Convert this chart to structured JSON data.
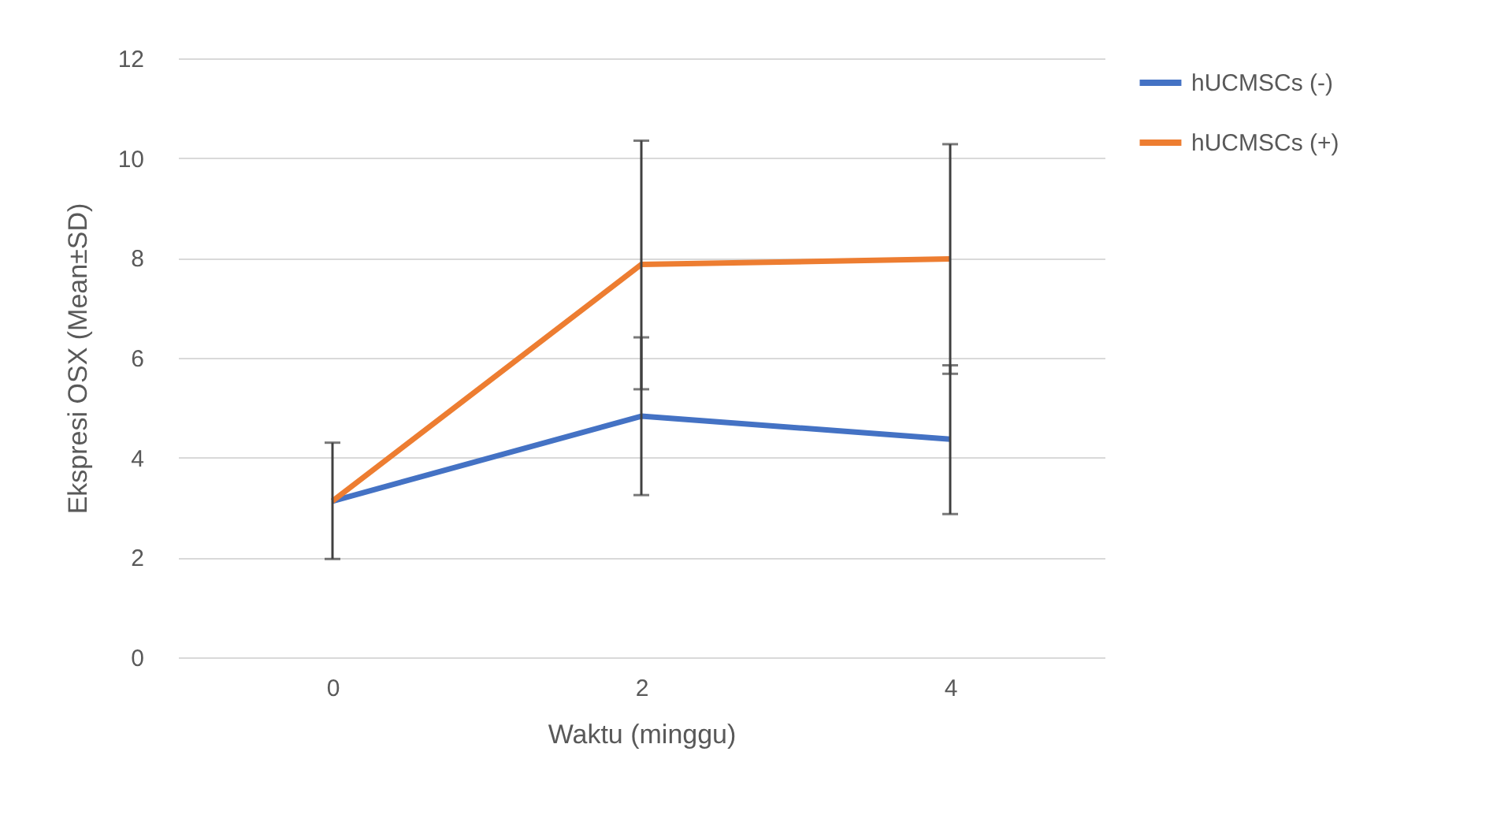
{
  "chart_data": {
    "type": "line",
    "xlabel": "Waktu (minggu)",
    "ylabel": "Ekspresi OSX (Mean±SD)",
    "categories": [
      "0",
      "2",
      "4"
    ],
    "series": [
      {
        "name": "hUCMSCs (-)",
        "color": "#4472c4",
        "values": [
          3.13,
          4.83,
          4.37
        ],
        "errors": [
          [
            1.97,
            4.3
          ],
          [
            3.25,
            6.41
          ],
          [
            2.87,
            5.85
          ]
        ]
      },
      {
        "name": "hUCMSCs (+)",
        "color": "#ed7d31",
        "values": [
          3.13,
          7.87,
          7.98
        ],
        "errors": [
          null,
          [
            5.37,
            10.35
          ],
          [
            5.68,
            10.28
          ]
        ]
      }
    ],
    "ylim": [
      0,
      12
    ],
    "yticks": [
      0,
      2,
      4,
      6,
      8,
      10,
      12
    ],
    "grid": "y",
    "legend": "right"
  }
}
